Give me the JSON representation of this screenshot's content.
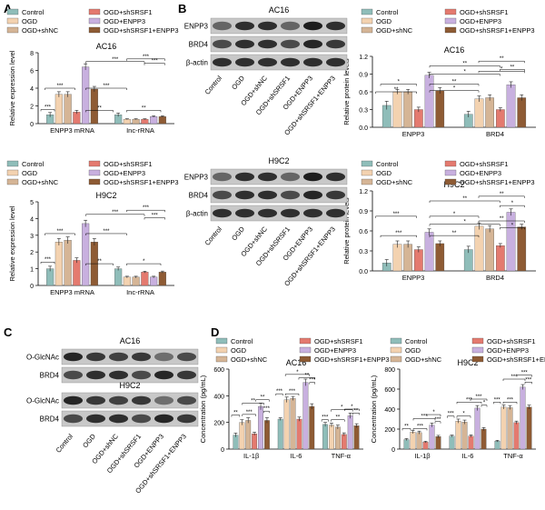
{
  "colors": {
    "Control": "#8fbdb9",
    "OGD": "#f3d2b0",
    "OGD+shNC": "#d5b596",
    "OGD+shSRSF1": "#e47a6f",
    "OGD+ENPP3": "#c8b0df",
    "OGD+shSRSF1+ENPP3": "#8e5b34"
  },
  "groups": [
    "Control",
    "OGD",
    "OGD+shNC",
    "OGD+shSRSF1",
    "OGD+ENPP3",
    "OGD+shSRSF1+ENPP3"
  ],
  "panel_letters": {
    "A": "A",
    "B": "B",
    "C": "C",
    "D": "D"
  },
  "legend_labels": [
    "Control",
    "OGD",
    "OGD+shNC",
    "OGD+shSRSF1",
    "OGD+ENPP3",
    "OGD+shSRSF1+ENPP3"
  ],
  "blot_B_top": {
    "title": "AC16",
    "rows": [
      "ENPP3",
      "BRD4",
      "β-actin"
    ]
  },
  "blot_B_bottom": {
    "title": "H9C2",
    "rows": [
      "ENPP3",
      "BRD4",
      "β-actin"
    ]
  },
  "blot_C_top": {
    "title": "AC16",
    "rows": [
      "O-GlcNAc",
      "BRD4"
    ]
  },
  "blot_C_bottom": {
    "title": "H9C2",
    "rows": [
      "O-GlcNAc",
      "BRD4"
    ]
  },
  "chart_data": [
    {
      "id": "A1",
      "type": "bar",
      "title": "AC16",
      "ylabel": "Relative expression level",
      "ylim": [
        0,
        8
      ],
      "yticks": [
        0,
        2,
        4,
        6,
        8
      ],
      "categories": [
        "ENPP3 mRNA",
        "Inc-rRNA"
      ],
      "series": [
        {
          "name": "Control",
          "values": [
            1.0,
            1.0
          ],
          "err": [
            0.25,
            0.2
          ]
        },
        {
          "name": "OGD",
          "values": [
            3.3,
            0.5
          ],
          "err": [
            0.3,
            0.05
          ]
        },
        {
          "name": "OGD+shNC",
          "values": [
            3.3,
            0.5
          ],
          "err": [
            0.3,
            0.05
          ]
        },
        {
          "name": "OGD+shSRSF1",
          "values": [
            1.3,
            0.5
          ],
          "err": [
            0.2,
            0.05
          ]
        },
        {
          "name": "OGD+ENPP3",
          "values": [
            6.4,
            0.8
          ],
          "err": [
            0.35,
            0.08
          ]
        },
        {
          "name": "OGD+shSRSF1+ENPP3",
          "values": [
            3.9,
            0.8
          ],
          "err": [
            0.3,
            0.08
          ]
        }
      ],
      "sig": [
        {
          "x1": 0.05,
          "x2": 0.27,
          "y": 4.0,
          "t": "***"
        },
        {
          "x1": 0.35,
          "x2": 0.65,
          "y": 4.0,
          "t": "***"
        },
        {
          "x1": 0.35,
          "x2": 0.78,
          "y": 7.0,
          "t": "***"
        },
        {
          "x1": 0.65,
          "x2": 0.93,
          "y": 7.3,
          "t": "***"
        },
        {
          "x1": 0.78,
          "x2": 0.93,
          "y": 6.8,
          "t": "***"
        },
        {
          "x1": 0.02,
          "x2": 0.12,
          "y": 1.6,
          "t": "***"
        },
        {
          "x1": 0.35,
          "x2": 0.55,
          "y": 1.5,
          "t": "**"
        },
        {
          "x1": 0.65,
          "x2": 0.9,
          "y": 1.5,
          "t": "**"
        }
      ]
    },
    {
      "id": "A2",
      "type": "bar",
      "title": "H9C2",
      "ylabel": "Relative expression level",
      "ylim": [
        0,
        5
      ],
      "yticks": [
        0,
        1,
        2,
        3,
        4,
        5
      ],
      "categories": [
        "ENPP3 mRNA",
        "Inc-rRNA"
      ],
      "series": [
        {
          "name": "Control",
          "values": [
            1.0,
            1.0
          ],
          "err": [
            0.15,
            0.1
          ]
        },
        {
          "name": "OGD",
          "values": [
            2.6,
            0.5
          ],
          "err": [
            0.2,
            0.05
          ]
        },
        {
          "name": "OGD+shNC",
          "values": [
            2.7,
            0.5
          ],
          "err": [
            0.2,
            0.05
          ]
        },
        {
          "name": "OGD+shSRSF1",
          "values": [
            1.5,
            0.8
          ],
          "err": [
            0.15,
            0.05
          ]
        },
        {
          "name": "OGD+ENPP3",
          "values": [
            3.7,
            0.5
          ],
          "err": [
            0.2,
            0.05
          ]
        },
        {
          "name": "OGD+shSRSF1+ENPP3",
          "values": [
            2.6,
            0.8
          ],
          "err": [
            0.2,
            0.06
          ]
        }
      ],
      "sig": [
        {
          "x1": 0.05,
          "x2": 0.27,
          "y": 3.1,
          "t": "***"
        },
        {
          "x1": 0.35,
          "x2": 0.65,
          "y": 3.1,
          "t": "***"
        },
        {
          "x1": 0.35,
          "x2": 0.78,
          "y": 4.25,
          "t": "***"
        },
        {
          "x1": 0.65,
          "x2": 0.93,
          "y": 4.5,
          "t": "***"
        },
        {
          "x1": 0.78,
          "x2": 0.93,
          "y": 4.05,
          "t": "***"
        },
        {
          "x1": 0.02,
          "x2": 0.12,
          "y": 1.4,
          "t": "***"
        },
        {
          "x1": 0.35,
          "x2": 0.55,
          "y": 1.3,
          "t": "**"
        },
        {
          "x1": 0.65,
          "x2": 0.9,
          "y": 1.3,
          "t": "*"
        }
      ]
    },
    {
      "id": "B1",
      "type": "bar",
      "title": "AC16",
      "ylabel": "Relative protein levels",
      "ylim": [
        0,
        1.2
      ],
      "yticks": [
        0,
        0.3,
        0.6,
        0.9,
        1.2
      ],
      "ytick_labels": [
        "0.0",
        "0.3",
        "0.6",
        "0.9",
        "1.2"
      ],
      "categories": [
        "ENPP3",
        "BRD4"
      ],
      "series": [
        {
          "name": "Control",
          "values": [
            0.37,
            0.22
          ],
          "err": [
            0.07,
            0.05
          ]
        },
        {
          "name": "OGD",
          "values": [
            0.6,
            0.48
          ],
          "err": [
            0.04,
            0.05
          ]
        },
        {
          "name": "OGD+shNC",
          "values": [
            0.6,
            0.5
          ],
          "err": [
            0.04,
            0.05
          ]
        },
        {
          "name": "OGD+shSRSF1",
          "values": [
            0.3,
            0.3
          ],
          "err": [
            0.04,
            0.03
          ]
        },
        {
          "name": "OGD+ENPP3",
          "values": [
            0.88,
            0.72
          ],
          "err": [
            0.05,
            0.05
          ]
        },
        {
          "name": "OGD+shSRSF1+ENPP3",
          "values": [
            0.62,
            0.5
          ],
          "err": [
            0.05,
            0.05
          ]
        }
      ],
      "sig": [
        {
          "x1": 0.05,
          "x2": 0.27,
          "y": 0.73,
          "t": "*"
        },
        {
          "x1": 0.35,
          "x2": 0.65,
          "y": 0.73,
          "t": "**"
        },
        {
          "x1": 0.35,
          "x2": 0.78,
          "y": 1.04,
          "t": "**"
        },
        {
          "x1": 0.65,
          "x2": 0.93,
          "y": 1.12,
          "t": "**"
        },
        {
          "x1": 0.78,
          "x2": 0.93,
          "y": 0.98,
          "t": "**"
        },
        {
          "x1": 0.02,
          "x2": 0.27,
          "y": 0.6,
          "t": "**"
        },
        {
          "x1": 0.35,
          "x2": 0.65,
          "y": 0.62,
          "t": "*"
        },
        {
          "x1": 0.35,
          "x2": 0.78,
          "y": 0.9,
          "t": "*"
        },
        {
          "x1": 0.65,
          "x2": 0.93,
          "y": 0.95,
          "t": "*"
        }
      ]
    },
    {
      "id": "B2",
      "type": "bar",
      "title": "H9C2",
      "ylabel": "Relative protein levels",
      "ylim": [
        0,
        1.2
      ],
      "yticks": [
        0,
        0.3,
        0.6,
        0.9,
        1.2
      ],
      "ytick_labels": [
        "0.0",
        "0.3",
        "0.6",
        "0.9",
        "1.2"
      ],
      "categories": [
        "ENPP3",
        "BRD4"
      ],
      "series": [
        {
          "name": "Control",
          "values": [
            0.12,
            0.32
          ],
          "err": [
            0.05,
            0.05
          ]
        },
        {
          "name": "OGD",
          "values": [
            0.4,
            0.67
          ],
          "err": [
            0.05,
            0.05
          ]
        },
        {
          "name": "OGD+shNC",
          "values": [
            0.4,
            0.63
          ],
          "err": [
            0.05,
            0.05
          ]
        },
        {
          "name": "OGD+shSRSF1",
          "values": [
            0.32,
            0.38
          ],
          "err": [
            0.04,
            0.03
          ]
        },
        {
          "name": "OGD+ENPP3",
          "values": [
            0.58,
            0.88
          ],
          "err": [
            0.05,
            0.05
          ]
        },
        {
          "name": "OGD+shSRSF1+ENPP3",
          "values": [
            0.41,
            0.66
          ],
          "err": [
            0.04,
            0.04
          ]
        }
      ],
      "sig": [
        {
          "x1": 0.05,
          "x2": 0.27,
          "y": 0.53,
          "t": "***"
        },
        {
          "x1": 0.35,
          "x2": 0.65,
          "y": 0.53,
          "t": "**"
        },
        {
          "x1": 0.35,
          "x2": 0.78,
          "y": 0.7,
          "t": "*"
        },
        {
          "x1": 0.65,
          "x2": 0.93,
          "y": 0.75,
          "t": "**"
        },
        {
          "x1": 0.78,
          "x2": 0.93,
          "y": 0.65,
          "t": "*"
        },
        {
          "x1": 0.02,
          "x2": 0.27,
          "y": 0.82,
          "t": "***"
        },
        {
          "x1": 0.35,
          "x2": 0.65,
          "y": 0.82,
          "t": "*"
        },
        {
          "x1": 0.35,
          "x2": 0.78,
          "y": 1.05,
          "t": "**"
        },
        {
          "x1": 0.65,
          "x2": 0.93,
          "y": 1.12,
          "t": "**"
        },
        {
          "x1": 0.78,
          "x2": 0.93,
          "y": 0.98,
          "t": "*"
        }
      ]
    },
    {
      "id": "D1",
      "type": "bar",
      "title": "AC16",
      "ylabel": "Concentration (pg/mL)",
      "ylim": [
        0,
        600
      ],
      "yticks": [
        0,
        200,
        400,
        600
      ],
      "categories": [
        "IL-1β",
        "IL-6",
        "TNF-α"
      ],
      "series": [
        {
          "name": "Control",
          "values": [
            105,
            225,
            185
          ],
          "err": [
            15,
            10,
            15
          ]
        },
        {
          "name": "OGD",
          "values": [
            200,
            370,
            180
          ],
          "err": [
            20,
            20,
            15
          ]
        },
        {
          "name": "OGD+shNC",
          "values": [
            215,
            380,
            165
          ],
          "err": [
            20,
            15,
            15
          ]
        },
        {
          "name": "OGD+shSRSF1",
          "values": [
            115,
            225,
            110
          ],
          "err": [
            12,
            15,
            12
          ]
        },
        {
          "name": "OGD+ENPP3",
          "values": [
            320,
            500,
            250
          ],
          "err": [
            25,
            25,
            20
          ]
        },
        {
          "name": "OGD+shSRSF1+ENPP3",
          "values": [
            215,
            320,
            175
          ],
          "err": [
            20,
            20,
            15
          ]
        }
      ],
      "sig": [
        {
          "x1": 0.02,
          "x2": 0.08,
          "y": 255,
          "t": "**"
        },
        {
          "x1": 0.1,
          "x2": 0.2,
          "y": 260,
          "t": "***"
        },
        {
          "x1": 0.1,
          "x2": 0.26,
          "y": 345,
          "t": "**"
        },
        {
          "x1": 0.2,
          "x2": 0.3,
          "y": 370,
          "t": "**"
        },
        {
          "x1": 0.26,
          "x2": 0.3,
          "y": 285,
          "t": "***"
        },
        {
          "x1": 0.35,
          "x2": 0.4,
          "y": 415,
          "t": "***"
        },
        {
          "x1": 0.42,
          "x2": 0.52,
          "y": 415,
          "t": "***"
        },
        {
          "x1": 0.42,
          "x2": 0.6,
          "y": 560,
          "t": "*"
        },
        {
          "x1": 0.52,
          "x2": 0.64,
          "y": 535,
          "t": "**"
        },
        {
          "x1": 0.6,
          "x2": 0.64,
          "y": 500,
          "t": "***"
        },
        {
          "x1": 0.69,
          "x2": 0.74,
          "y": 220,
          "t": "***"
        },
        {
          "x1": 0.76,
          "x2": 0.86,
          "y": 220,
          "t": "**"
        },
        {
          "x1": 0.76,
          "x2": 0.92,
          "y": 295,
          "t": "*"
        },
        {
          "x1": 0.86,
          "x2": 0.97,
          "y": 300,
          "t": "*"
        },
        {
          "x1": 0.92,
          "x2": 0.97,
          "y": 270,
          "t": "**"
        }
      ]
    },
    {
      "id": "D2",
      "type": "bar",
      "title": "H9C2",
      "ylabel": "Concentration (pg/mL)",
      "ylim": [
        0,
        800
      ],
      "yticks": [
        0,
        200,
        400,
        600,
        800
      ],
      "categories": [
        "IL-1β",
        "IL-6",
        "TNF-α"
      ],
      "series": [
        {
          "name": "Control",
          "values": [
            95,
            130,
            80
          ],
          "err": [
            10,
            10,
            8
          ]
        },
        {
          "name": "OGD",
          "values": [
            170,
            280,
            420
          ],
          "err": [
            15,
            20,
            20
          ]
        },
        {
          "name": "OGD+shNC",
          "values": [
            165,
            270,
            415
          ],
          "err": [
            15,
            20,
            20
          ]
        },
        {
          "name": "OGD+shSRSF1",
          "values": [
            70,
            130,
            265
          ],
          "err": [
            8,
            12,
            15
          ]
        },
        {
          "name": "OGD+ENPP3",
          "values": [
            240,
            410,
            620
          ],
          "err": [
            20,
            25,
            25
          ]
        },
        {
          "name": "OGD+shSRSF1+ENPP3",
          "values": [
            125,
            200,
            420
          ],
          "err": [
            12,
            15,
            20
          ]
        }
      ],
      "sig": [
        {
          "x1": 0.02,
          "x2": 0.08,
          "y": 205,
          "t": "**"
        },
        {
          "x1": 0.1,
          "x2": 0.2,
          "y": 205,
          "t": "***"
        },
        {
          "x1": 0.1,
          "x2": 0.26,
          "y": 305,
          "t": "***"
        },
        {
          "x1": 0.2,
          "x2": 0.3,
          "y": 345,
          "t": "*"
        },
        {
          "x1": 0.26,
          "x2": 0.3,
          "y": 275,
          "t": "***"
        },
        {
          "x1": 0.35,
          "x2": 0.4,
          "y": 330,
          "t": "***"
        },
        {
          "x1": 0.42,
          "x2": 0.52,
          "y": 330,
          "t": "*"
        },
        {
          "x1": 0.42,
          "x2": 0.6,
          "y": 470,
          "t": "***"
        },
        {
          "x1": 0.52,
          "x2": 0.64,
          "y": 500,
          "t": "***"
        },
        {
          "x1": 0.6,
          "x2": 0.64,
          "y": 440,
          "t": "*"
        },
        {
          "x1": 0.69,
          "x2": 0.74,
          "y": 470,
          "t": "***"
        },
        {
          "x1": 0.76,
          "x2": 0.86,
          "y": 470,
          "t": "***"
        },
        {
          "x1": 0.76,
          "x2": 0.92,
          "y": 700,
          "t": "***"
        },
        {
          "x1": 0.86,
          "x2": 0.97,
          "y": 740,
          "t": "***"
        },
        {
          "x1": 0.92,
          "x2": 0.97,
          "y": 670,
          "t": "***"
        }
      ]
    }
  ]
}
